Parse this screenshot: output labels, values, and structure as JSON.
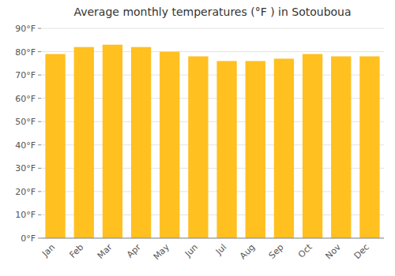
{
  "chart_data": {
    "type": "bar",
    "title": "Average monthly temperatures (°F ) in Sotouboua",
    "categories": [
      "Jan",
      "Feb",
      "Mar",
      "Apr",
      "May",
      "Jun",
      "Jul",
      "Aug",
      "Sep",
      "Oct",
      "Nov",
      "Dec"
    ],
    "values": [
      79,
      82,
      83,
      82,
      80,
      78,
      76,
      76,
      77,
      79,
      78,
      78
    ],
    "color": "#FFC020",
    "ylim": [
      0,
      90
    ],
    "yticks": [
      {
        "value": 0,
        "label": "0°F"
      },
      {
        "value": 10,
        "label": "10°F"
      },
      {
        "value": 20,
        "label": "20°F"
      },
      {
        "value": 30,
        "label": "30°F"
      },
      {
        "value": 40,
        "label": "40°F"
      },
      {
        "value": 50,
        "label": "50°F"
      },
      {
        "value": 60,
        "label": "60°F"
      },
      {
        "value": 70,
        "label": "70°F"
      },
      {
        "value": 80,
        "label": "80°F"
      },
      {
        "value": 90,
        "label": "90°F"
      }
    ],
    "grid": true
  }
}
